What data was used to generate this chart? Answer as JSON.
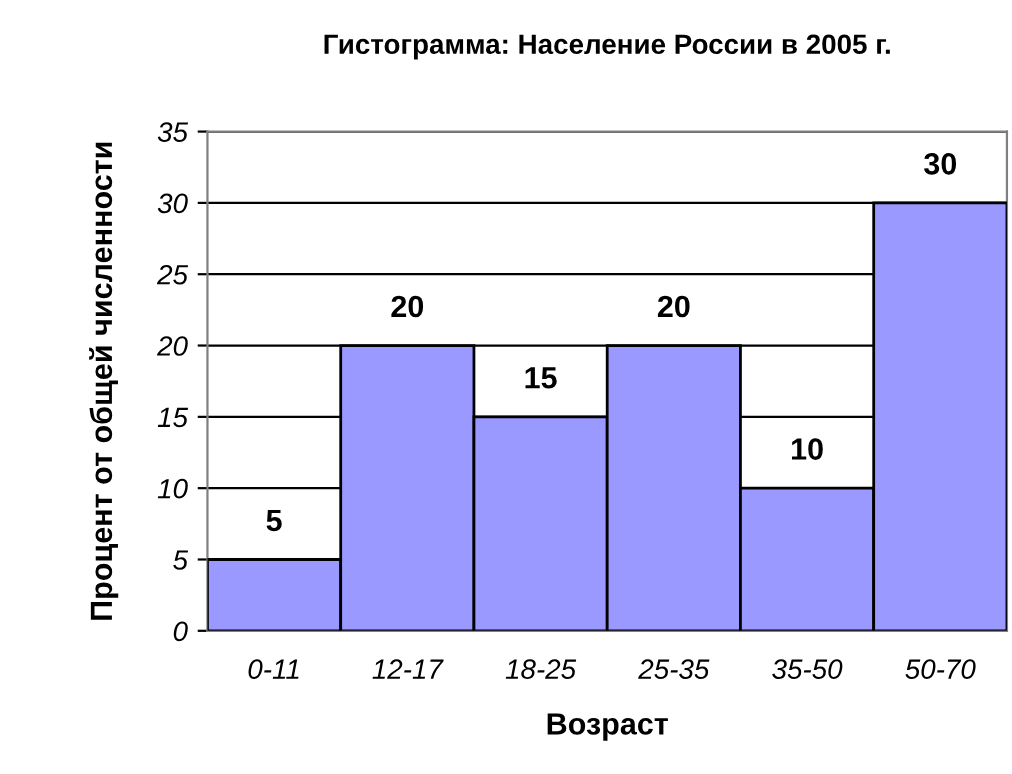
{
  "chart_data": {
    "type": "bar",
    "title": "Гистограмма: Население России в 2005 г.",
    "xlabel": "Возраст",
    "ylabel": "Процент от общей численности",
    "categories": [
      "0-11",
      "12-17",
      "18-25",
      "25-35",
      "35-50",
      "50-70"
    ],
    "values": [
      5,
      20,
      15,
      20,
      10,
      30
    ],
    "color": "#9999ff",
    "ylim": [
      0,
      35
    ],
    "yticks": [
      0,
      5,
      10,
      15,
      20,
      25,
      30,
      35
    ],
    "grid": "y",
    "data_labels": true
  }
}
